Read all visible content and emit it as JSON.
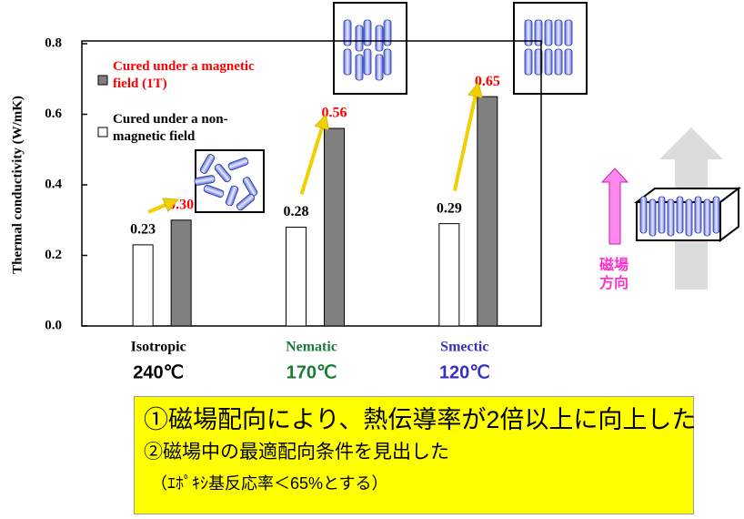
{
  "chart_data": {
    "type": "bar",
    "y_label": "Thermal conductivity (W/mK)",
    "categories": [
      "Isotropic",
      "Nematic",
      "Smectic"
    ],
    "category_colors": [
      "#000000",
      "#1a7a3a",
      "#3a30c0"
    ],
    "temperatures": [
      "240℃",
      "170℃",
      "120℃"
    ],
    "series": [
      {
        "name": "Cured under a non-magnetic field",
        "color": "#ffffff",
        "label_color": "#000000",
        "values": [
          0.23,
          0.28,
          0.29
        ],
        "value_labels": [
          "0.23",
          "0.28",
          "0.29"
        ]
      },
      {
        "name": "Cured under a magnetic field (1T)",
        "color": "#808080",
        "label_color": "#ff0000",
        "values": [
          0.3,
          0.56,
          0.65
        ],
        "value_labels": [
          "0.30",
          "0.56",
          "0.65"
        ]
      }
    ],
    "ylim": [
      0,
      0.8
    ],
    "yticks": [
      {
        "value": 0,
        "label": "0.0"
      },
      0.2,
      0.4,
      0.6,
      0.8
    ],
    "field_direction_label": "磁場\n方向",
    "notes": [
      "①磁場配向により、熱伝導率が2倍以上に向上した",
      "②磁場中の最適配向条件を見出した",
      "（ｴﾎﾟｷｼ基反応率＜65%とする）"
    ]
  }
}
